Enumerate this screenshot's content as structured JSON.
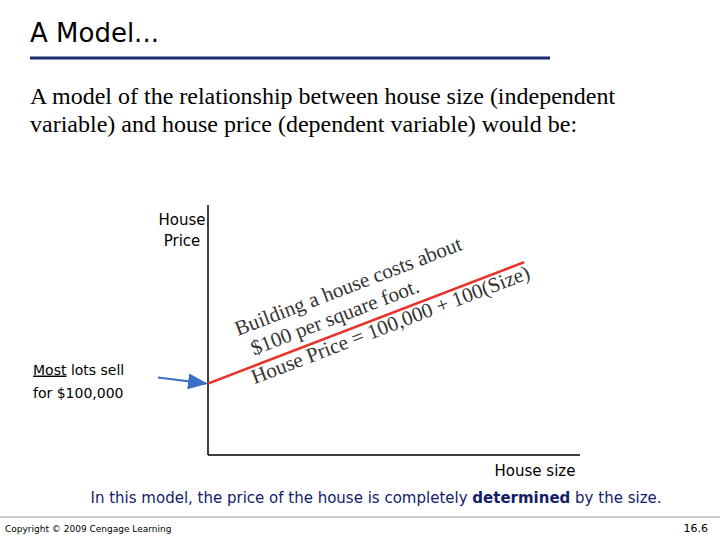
{
  "slide": {
    "title": "A Model...",
    "intro": [
      "A model of the relationship between house size (independent",
      "variable) and house price (dependent variable) would be:"
    ],
    "caption": [
      {
        "text": "In this model, the price of the house is completely "
      },
      {
        "text": "determined",
        "bold": true
      },
      {
        "text": " by the size."
      }
    ],
    "copyright": "Copyright © 2009 Cengage Learning",
    "page": "16.6"
  },
  "chart_data": {
    "type": "line",
    "x_label": "House size",
    "y_label": [
      "House",
      "Price"
    ],
    "x": [
      0,
      1700
    ],
    "values": [
      100000,
      270000
    ],
    "color": "#e8322a",
    "xlim": [
      0,
      2000
    ],
    "ylim": [
      0,
      350000
    ],
    "grid": false,
    "tick_labels": false,
    "annotations": [
      {
        "x": 0,
        "y": 100000,
        "lines": [
          [
            {
              "text": "Most",
              "underline": true
            },
            {
              "text": " lots sell"
            }
          ],
          [
            {
              "text": "for $100,000"
            }
          ]
        ]
      },
      {
        "lines": [
          [
            {
              "text": "Building a house costs about"
            }
          ],
          [
            {
              "text": "$100 per square foot."
            }
          ],
          [
            {
              "text": "House Price = 100,000 + 100(Size)"
            }
          ]
        ]
      }
    ]
  }
}
